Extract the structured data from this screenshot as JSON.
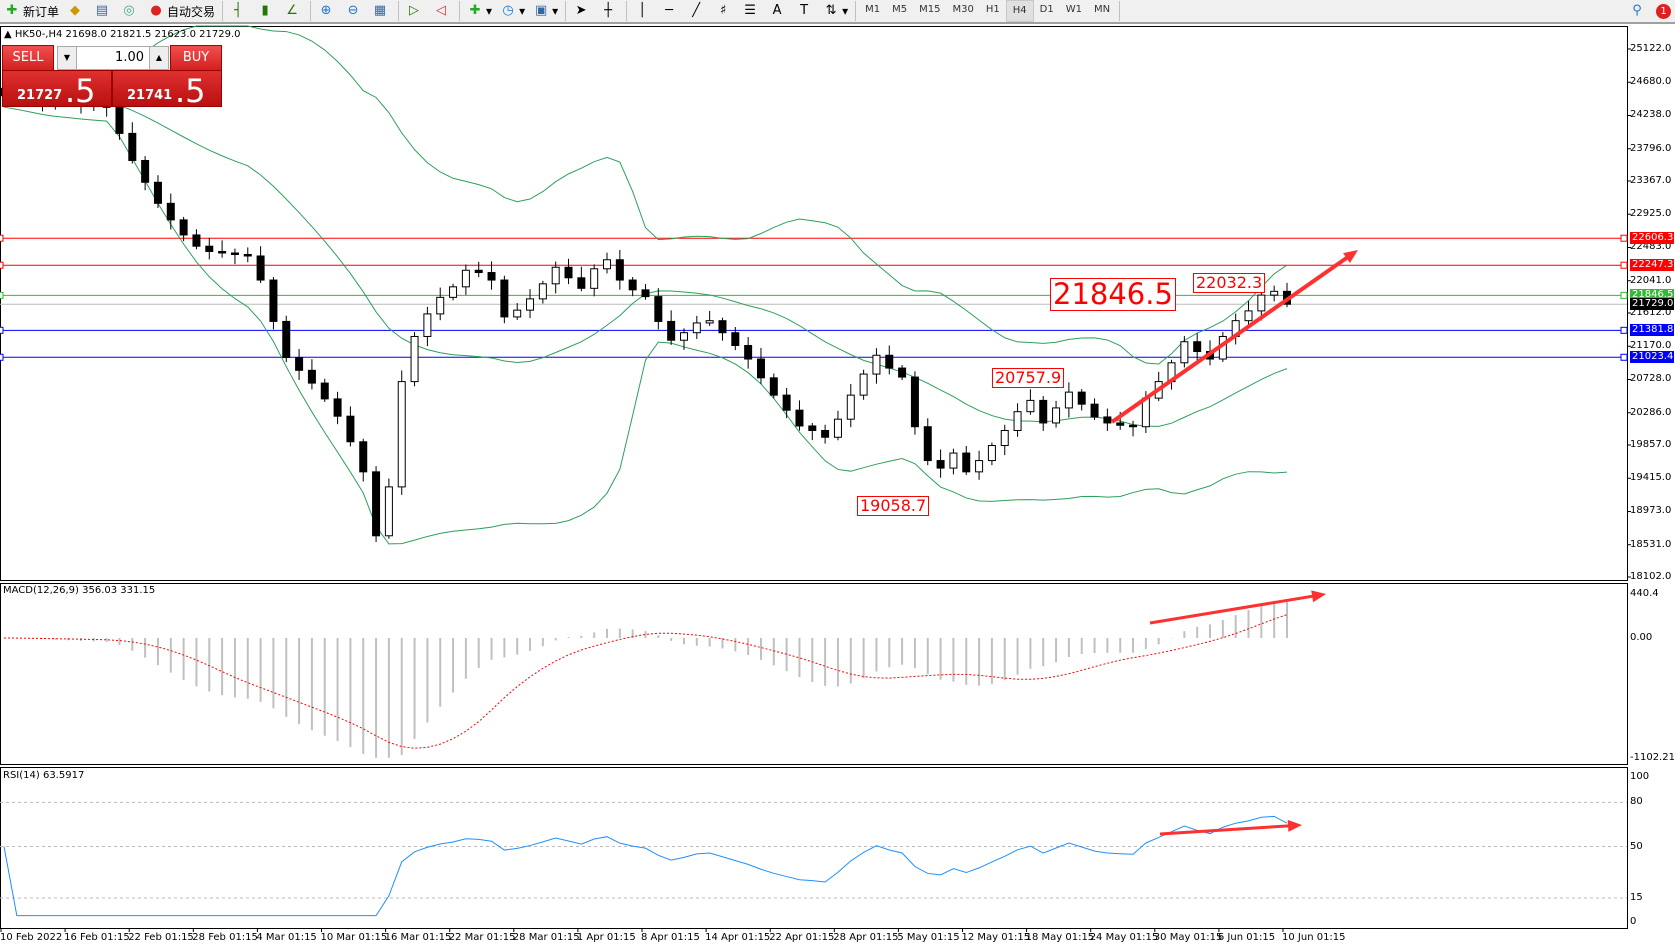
{
  "toolbar": {
    "new_order": "新订单",
    "auto_trading": "自动交易",
    "icons": [
      "new-order-icon",
      "market-watch-icon",
      "navigator-icon",
      "signals-icon",
      "auto-trading-icon",
      "bar-chart-icon",
      "candlestick-icon",
      "line-chart-icon",
      "zoom-in-icon",
      "zoom-out-icon",
      "tile-windows-icon",
      "chart-shift-icon",
      "autoscroll-icon",
      "indicators-icon",
      "periods-icon",
      "templates-icon",
      "cursor-icon",
      "crosshair-icon",
      "vertical-line-icon",
      "horizontal-line-icon",
      "trendline-icon",
      "fibonacci-icon",
      "fibonacci-fan-icon",
      "text-icon",
      "text-label-icon",
      "arrows-icon"
    ],
    "timeframes": [
      "M1",
      "M5",
      "M15",
      "M30",
      "H1",
      "H4",
      "D1",
      "W1",
      "MN"
    ],
    "active_timeframe": "H4",
    "notification_count": "1"
  },
  "header": {
    "symbol_info": "HK50-,H4  21698.0 21821.5 21623.0 21729.0"
  },
  "trade_panel": {
    "sell_label": "SELL",
    "buy_label": "BUY",
    "lot": "1.00",
    "sell_main": "21727",
    "sell_frac": ".5",
    "buy_main": "21741",
    "buy_frac": ".5"
  },
  "price_axis": [
    "25122.0",
    "24680.0",
    "24238.0",
    "23796.0",
    "23367.0",
    "22925.0",
    "22483.0",
    "22041.0",
    "21612.0",
    "21170.0",
    "20728.0",
    "20286.0",
    "19857.0",
    "19415.0",
    "18973.0",
    "18531.0",
    "18102.0"
  ],
  "levels": [
    {
      "value": 22606.3,
      "label": "22606.3",
      "color": "#ff0000"
    },
    {
      "value": 22247.3,
      "label": "22247.3",
      "color": "#ff0000"
    },
    {
      "value": 21846.5,
      "label": "21846.5",
      "color": "#33bb33"
    },
    {
      "value": 21729.0,
      "label": "21729.0",
      "color": "#000000"
    },
    {
      "value": 21381.8,
      "label": "21381.8",
      "color": "#0000ff"
    },
    {
      "value": 21023.4,
      "label": "21023.4",
      "color": "#0000ff"
    }
  ],
  "annotations": [
    {
      "label": "21846.5"
    },
    {
      "label": "22032.3"
    },
    {
      "label": "20757.9"
    },
    {
      "label": "19058.7"
    }
  ],
  "macd": {
    "label": "MACD(12,26,9) 356.03 331.15",
    "axis": [
      "440.4",
      "0.00",
      "-1102.21"
    ]
  },
  "rsi": {
    "label": "RSI(14) 63.5917",
    "axis": [
      "100",
      "80",
      "50",
      "15",
      "0"
    ]
  },
  "dates": [
    "10 Feb 2022",
    "16 Feb 01:15",
    "22 Feb 01:15",
    "28 Feb 01:15",
    "4 Mar 01:15",
    "10 Mar 01:15",
    "16 Mar 01:15",
    "22 Mar 01:15",
    "28 Mar 01:15",
    "1 Apr 01:15",
    "8 Apr 01:15",
    "14 Apr 01:15",
    "22 Apr 01:15",
    "28 Apr 01:15",
    "5 May 01:15",
    "12 May 01:15",
    "18 May 01:15",
    "24 May 01:15",
    "30 May 01:15",
    "6 Jun 01:15",
    "10 Jun 01:15"
  ],
  "colors": {
    "bands": "#2ca05a",
    "macd_hist": "#c0c0c0",
    "macd_signal": "#ff0000",
    "rsi": "#1e90ff",
    "arrow": "#ff3030"
  },
  "chart_data": {
    "type": "candlestick",
    "symbol": "HK50-",
    "timeframe": "H4",
    "ylim": [
      18102.0,
      25122.0
    ],
    "close": [
      24500,
      24480,
      24450,
      24420,
      24400,
      24390,
      24370,
      24360,
      24350,
      24000,
      23640,
      23350,
      23070,
      22850,
      22650,
      22500,
      22430,
      22410,
      22390,
      22370,
      22050,
      21500,
      21020,
      20850,
      20680,
      20470,
      20240,
      19900,
      19500,
      18650,
      19300,
      20700,
      21300,
      21600,
      21820,
      21960,
      22180,
      22150,
      22050,
      21560,
      21650,
      21800,
      22000,
      22220,
      22080,
      21940,
      22200,
      22320,
      22050,
      21920,
      21830,
      21500,
      21250,
      21350,
      21480,
      21510,
      21350,
      21180,
      21000,
      20750,
      20520,
      20320,
      20110,
      20050,
      19960,
      20200,
      20520,
      20800,
      21050,
      20880,
      20760,
      20100,
      19650,
      19550,
      19750,
      19500,
      19650,
      19850,
      20050,
      20300,
      20450,
      20150,
      20350,
      20560,
      20400,
      20230,
      20150,
      20120,
      20100,
      20480,
      20700,
      20950,
      21230,
      21100,
      21000,
      21300,
      21510,
      21640,
      21850,
      21900,
      21729
    ],
    "indicators": [
      "Bollinger Bands",
      "MACD(12,26,9)",
      "RSI(14)"
    ]
  }
}
